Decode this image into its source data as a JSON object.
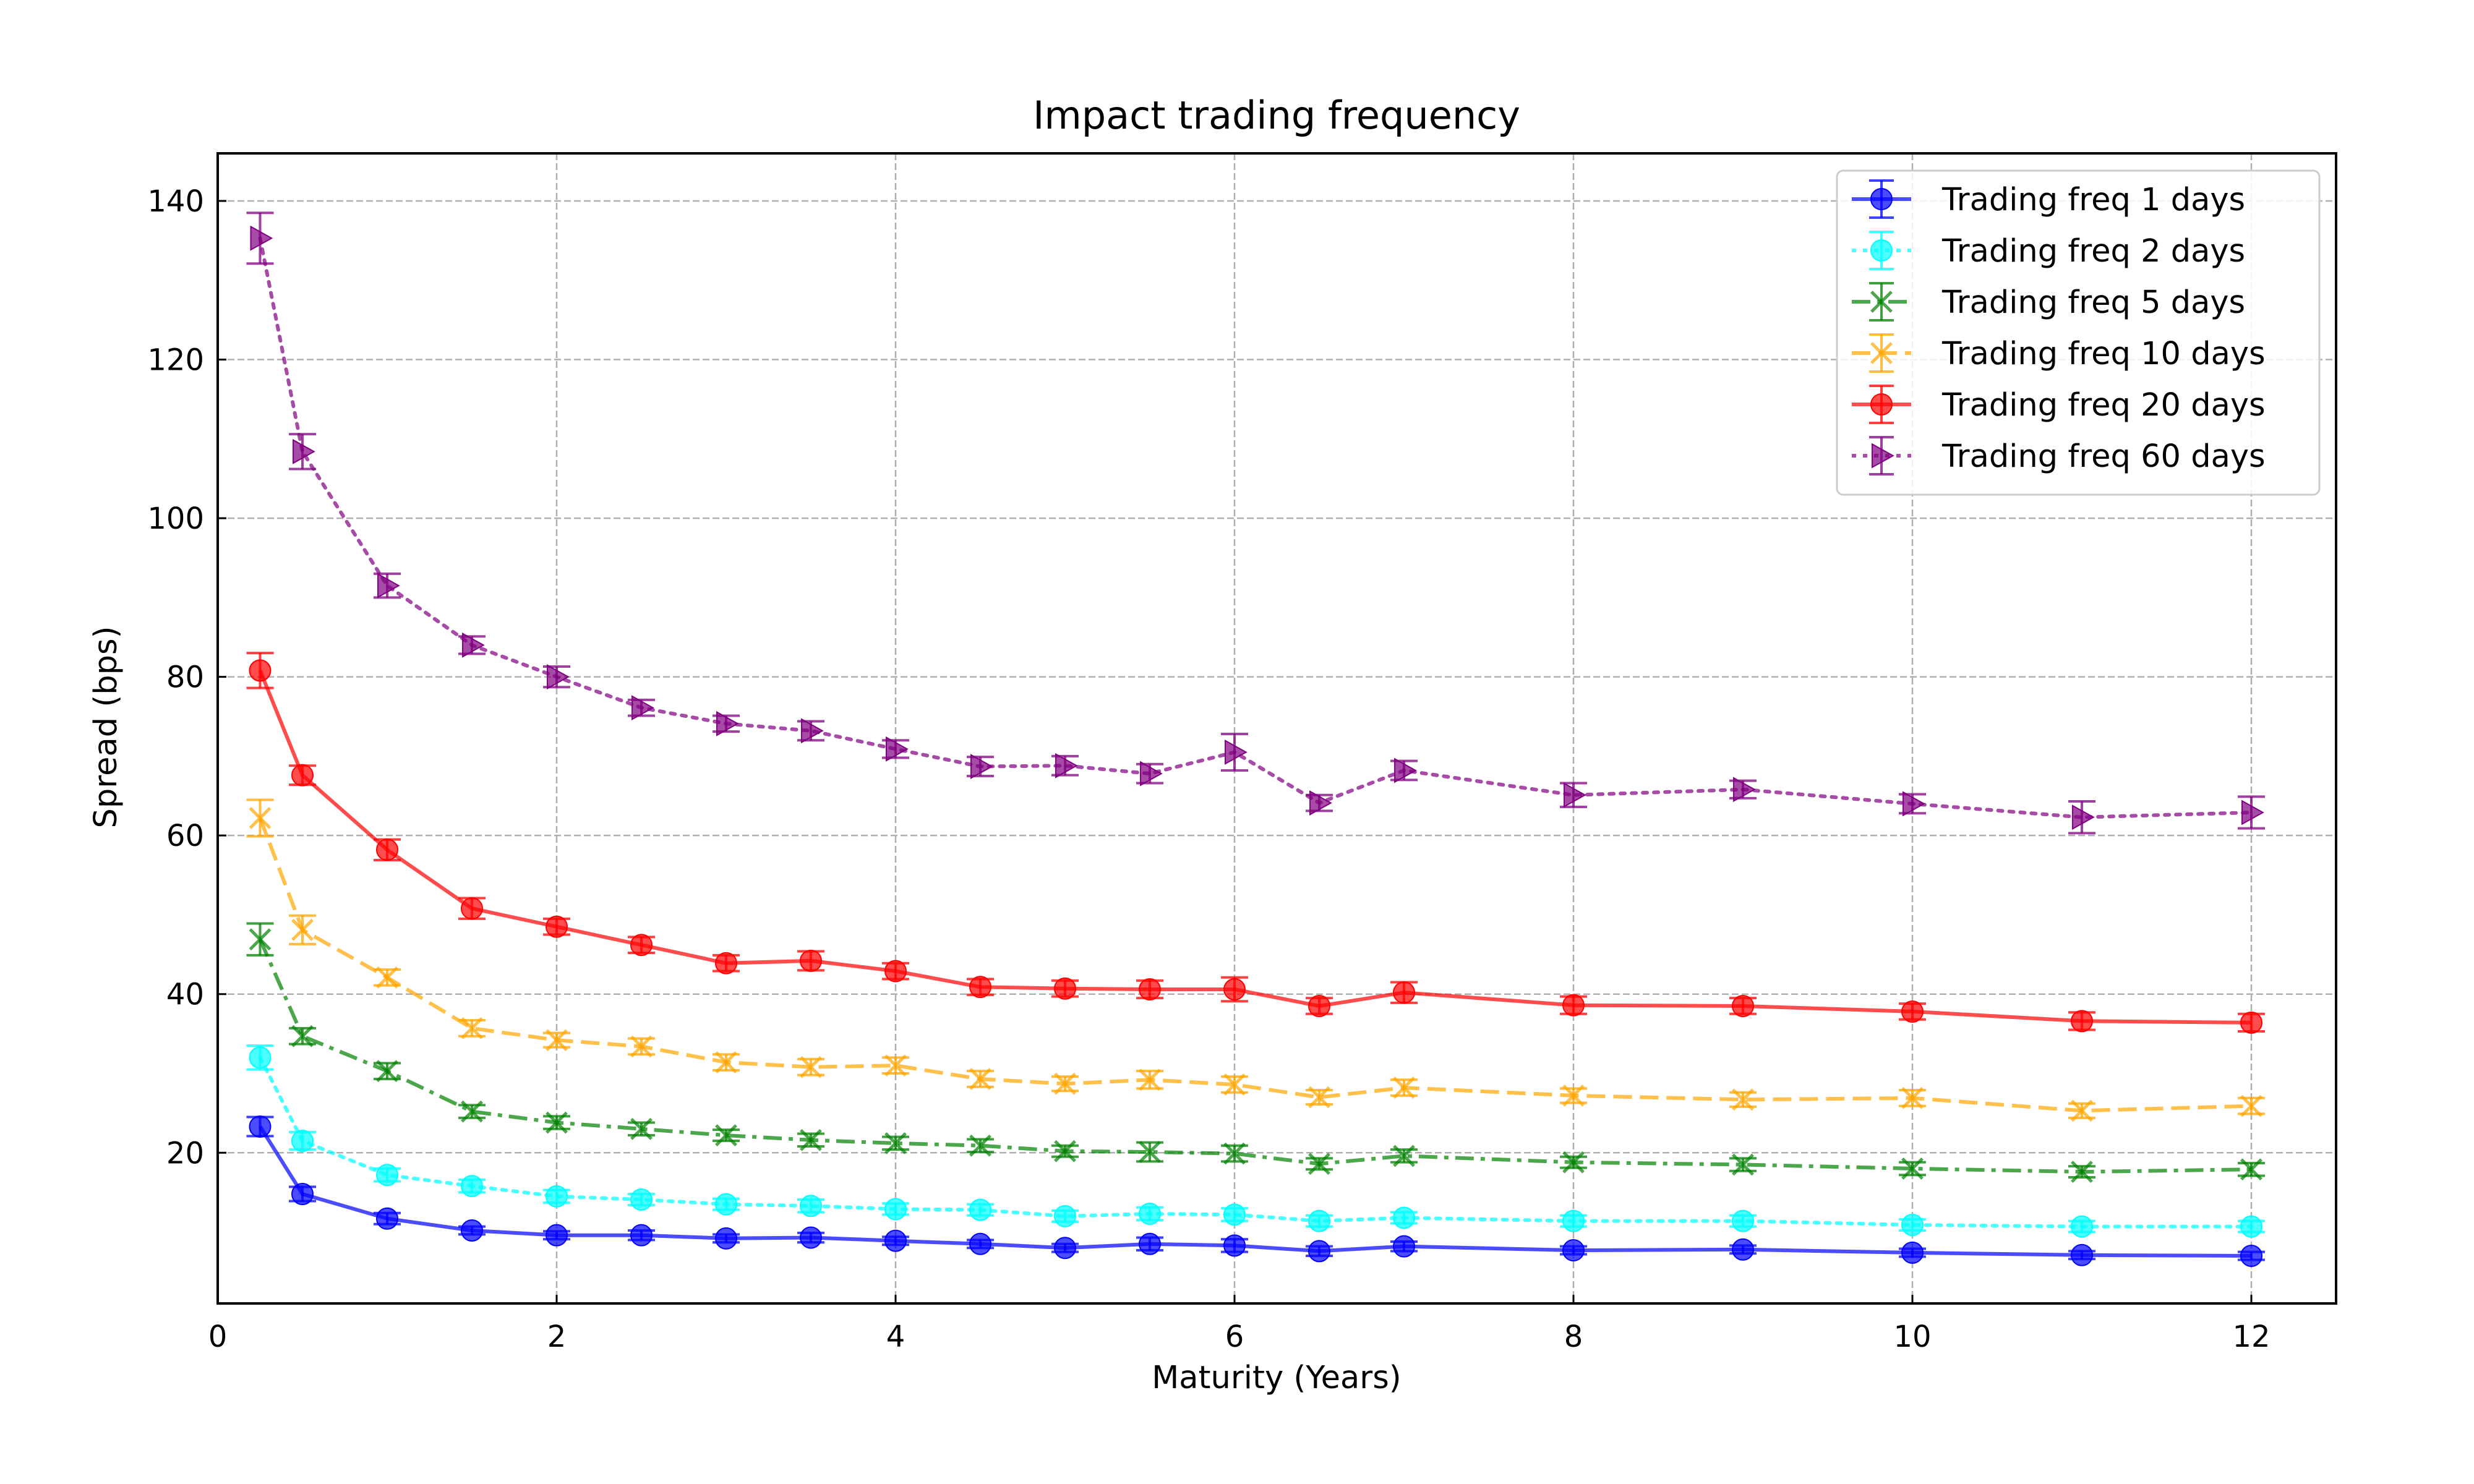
{
  "chart_data": {
    "type": "line",
    "title": "Impact trading frequency",
    "xlabel": "Maturity (Years)",
    "ylabel": "Spread (bps)",
    "xlim": [
      0,
      12.5
    ],
    "ylim": [
      1,
      146
    ],
    "xticks": [
      0,
      2,
      4,
      6,
      8,
      10,
      12
    ],
    "yticks": [
      20,
      40,
      60,
      80,
      100,
      120,
      140
    ],
    "grid": true,
    "legend_position": "top-right",
    "x": [
      0.25,
      0.5,
      1,
      1.5,
      2,
      2.5,
      3,
      3.5,
      4,
      4.5,
      5,
      5.5,
      6,
      6.5,
      7,
      8,
      9,
      10,
      11,
      12
    ],
    "series": [
      {
        "name": "Trading freq 1 days",
        "color": "#0000ff",
        "line_style": "solid",
        "marker": "circle",
        "values": [
          23.3,
          14.8,
          11.7,
          10.2,
          9.6,
          9.6,
          9.2,
          9.3,
          8.9,
          8.5,
          8.0,
          8.5,
          8.3,
          7.6,
          8.2,
          7.7,
          7.8,
          7.4,
          7.1,
          7.0
        ],
        "errors": [
          1.2,
          0.9,
          0.7,
          0.5,
          0.5,
          0.6,
          0.5,
          0.6,
          0.5,
          0.5,
          0.5,
          0.8,
          0.8,
          0.6,
          0.6,
          0.5,
          0.5,
          0.5,
          0.5,
          0.5
        ]
      },
      {
        "name": "Trading freq 2 days",
        "color": "#00ffff",
        "line_style": "dotted",
        "marker": "circle",
        "values": [
          32.0,
          21.5,
          17.2,
          15.8,
          14.5,
          14.1,
          13.5,
          13.3,
          12.9,
          12.8,
          12.0,
          12.3,
          12.2,
          11.4,
          11.8,
          11.4,
          11.4,
          10.9,
          10.7,
          10.7
        ],
        "errors": [
          1.5,
          1.1,
          0.8,
          0.8,
          0.8,
          0.7,
          0.7,
          0.8,
          0.7,
          0.7,
          0.7,
          0.8,
          0.8,
          0.7,
          0.7,
          0.7,
          0.7,
          0.7,
          0.7,
          0.7
        ]
      },
      {
        "name": "Trading freq 5 days",
        "color": "#008000",
        "line_style": "dashdot",
        "marker": "x",
        "values": [
          46.9,
          34.7,
          30.3,
          25.2,
          23.8,
          23.0,
          22.2,
          21.6,
          21.2,
          20.9,
          20.2,
          20.1,
          19.9,
          18.6,
          19.6,
          18.8,
          18.5,
          18.0,
          17.6,
          17.9
        ],
        "errors": [
          2.0,
          1.0,
          1.0,
          0.8,
          0.8,
          0.8,
          0.7,
          0.8,
          0.8,
          0.8,
          0.7,
          1.2,
          1.0,
          0.7,
          0.8,
          0.7,
          0.8,
          0.8,
          0.7,
          0.8
        ]
      },
      {
        "name": "Trading freq 10 days",
        "color": "#ffa500",
        "line_style": "dashed",
        "marker": "x",
        "values": [
          62.2,
          48.1,
          42.1,
          35.7,
          34.2,
          33.4,
          31.4,
          30.8,
          31.0,
          29.3,
          28.7,
          29.2,
          28.6,
          27.0,
          28.2,
          27.2,
          26.7,
          26.9,
          25.3,
          25.9
        ],
        "errors": [
          2.3,
          1.8,
          1.0,
          1.0,
          0.9,
          1.0,
          1.0,
          1.0,
          1.0,
          1.0,
          0.9,
          1.1,
          1.0,
          0.9,
          1.0,
          0.9,
          0.9,
          1.0,
          0.9,
          1.0
        ]
      },
      {
        "name": "Trading freq 20 days",
        "color": "#ff0000",
        "line_style": "solid",
        "marker": "circle",
        "values": [
          80.8,
          67.6,
          58.2,
          50.8,
          48.5,
          46.2,
          43.9,
          44.2,
          42.9,
          40.9,
          40.7,
          40.6,
          40.6,
          38.5,
          40.2,
          38.6,
          38.5,
          37.8,
          36.6,
          36.4
        ],
        "errors": [
          2.2,
          1.2,
          1.3,
          1.3,
          1.0,
          1.0,
          1.0,
          1.2,
          1.0,
          1.0,
          1.0,
          1.1,
          1.5,
          1.0,
          1.3,
          1.1,
          1.0,
          1.0,
          1.1,
          1.1
        ]
      },
      {
        "name": "Trading freq 60 days",
        "color": "#800080",
        "line_style": "dotted",
        "marker": "triangle-right",
        "values": [
          135.3,
          108.4,
          91.5,
          84.0,
          80.0,
          76.1,
          74.1,
          73.2,
          70.9,
          68.7,
          68.8,
          67.8,
          70.5,
          64.1,
          68.2,
          65.1,
          65.8,
          64.0,
          62.3,
          62.9
        ],
        "errors": [
          3.2,
          2.2,
          1.5,
          1.1,
          1.3,
          1.0,
          1.0,
          1.2,
          1.1,
          1.2,
          1.2,
          1.2,
          2.3,
          1.0,
          1.2,
          1.5,
          1.1,
          1.2,
          2.0,
          2.0
        ]
      }
    ]
  }
}
